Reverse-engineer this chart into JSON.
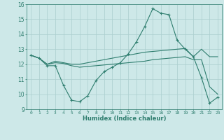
{
  "title": "",
  "xlabel": "Humidex (Indice chaleur)",
  "x": [
    0,
    1,
    2,
    3,
    4,
    5,
    6,
    7,
    8,
    9,
    10,
    11,
    12,
    13,
    14,
    15,
    16,
    17,
    18,
    19,
    20,
    21,
    22,
    23
  ],
  "line1": [
    12.6,
    12.4,
    11.9,
    11.9,
    10.6,
    9.6,
    9.5,
    9.9,
    10.9,
    11.5,
    11.8,
    12.1,
    12.7,
    13.5,
    14.5,
    15.7,
    15.4,
    15.3,
    13.6,
    13.0,
    12.5,
    11.1,
    9.4,
    9.8
  ],
  "line2": [
    12.6,
    12.4,
    12.0,
    12.2,
    12.1,
    12.0,
    12.0,
    12.1,
    12.2,
    12.3,
    12.4,
    12.5,
    12.6,
    12.7,
    12.8,
    12.85,
    12.9,
    12.95,
    13.0,
    13.05,
    12.5,
    13.0,
    12.5,
    12.5
  ],
  "line3": [
    12.6,
    12.4,
    12.0,
    12.1,
    12.05,
    11.9,
    11.8,
    11.85,
    11.9,
    11.95,
    12.0,
    12.05,
    12.1,
    12.15,
    12.2,
    12.3,
    12.35,
    12.4,
    12.45,
    12.5,
    12.3,
    12.3,
    10.5,
    10.0
  ],
  "line_color": "#2e7d6e",
  "bg_color": "#cde8e8",
  "grid_color": "#aacece",
  "ylim": [
    9,
    16
  ],
  "yticks": [
    9,
    10,
    11,
    12,
    13,
    14,
    15,
    16
  ],
  "figsize": [
    3.2,
    2.0
  ],
  "dpi": 100
}
